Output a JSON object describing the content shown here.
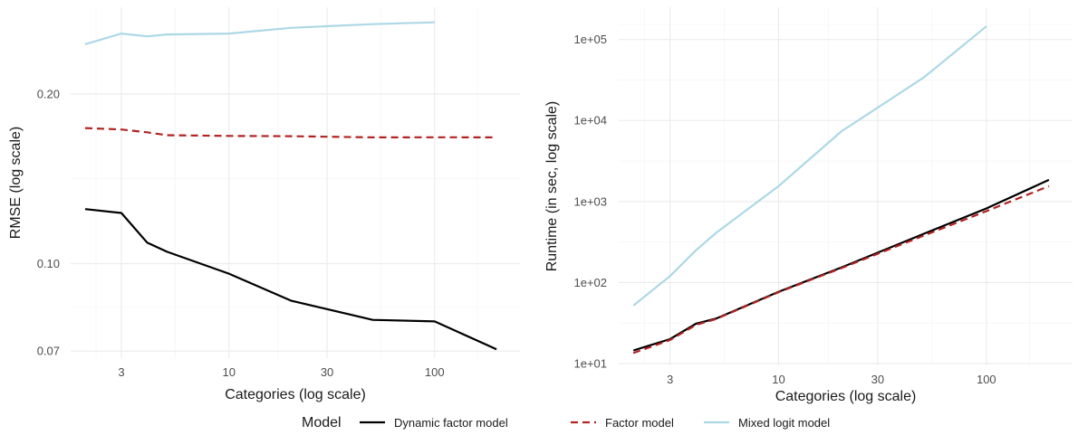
{
  "chart_data": [
    {
      "type": "line",
      "xlabel": "Categories (log scale)",
      "ylabel": "RMSE (log scale)",
      "x_scale": "log",
      "y_scale": "log",
      "xlim": [
        1.7,
        260
      ],
      "ylim": [
        0.068,
        0.285
      ],
      "x_ticks": [
        3,
        10,
        30,
        100
      ],
      "x_tick_labels": [
        "3",
        "10",
        "30",
        "100"
      ],
      "y_ticks": [
        0.07,
        0.1,
        0.2
      ],
      "y_tick_labels": [
        "0.07",
        "0.10",
        "0.20"
      ],
      "grid": true,
      "series": [
        {
          "name": "Dynamic factor model",
          "color": "#000000",
          "dash": "solid",
          "x": [
            2,
            3,
            4,
            5,
            10,
            20,
            50,
            100,
            200
          ],
          "values": [
            0.125,
            0.123,
            0.109,
            0.105,
            0.096,
            0.086,
            0.0795,
            0.079,
            0.0705
          ]
        },
        {
          "name": "Factor model",
          "color": "#b22222",
          "dash": "dashed",
          "x": [
            2,
            3,
            4,
            5,
            10,
            20,
            50,
            100,
            200
          ],
          "values": [
            0.174,
            0.173,
            0.171,
            0.169,
            0.1685,
            0.1683,
            0.1675,
            0.1676,
            0.1675
          ]
        },
        {
          "name": "Mixed logit model",
          "color": "#add8e6",
          "dash": "solid",
          "x": [
            2,
            3,
            4,
            5,
            10,
            20,
            50,
            100
          ],
          "values": [
            0.245,
            0.256,
            0.253,
            0.255,
            0.256,
            0.262,
            0.266,
            0.268
          ]
        }
      ]
    },
    {
      "type": "line",
      "xlabel": "Categories (log scale)",
      "ylabel": "Runtime (in sec, log scale)",
      "x_scale": "log",
      "y_scale": "log",
      "xlim": [
        1.7,
        260
      ],
      "ylim": [
        9.5,
        250000
      ],
      "x_ticks": [
        3,
        10,
        30,
        100
      ],
      "x_tick_labels": [
        "3",
        "10",
        "30",
        "100"
      ],
      "y_ticks": [
        10,
        100,
        1000,
        10000,
        100000
      ],
      "y_tick_labels": [
        "1e+01",
        "1e+02",
        "1e+03",
        "1e+04",
        "1e+05"
      ],
      "grid": true,
      "series": [
        {
          "name": "Dynamic factor model",
          "color": "#000000",
          "dash": "solid",
          "x": [
            2,
            3,
            4,
            5,
            10,
            20,
            50,
            100,
            200
          ],
          "values": [
            14.5,
            20,
            31,
            36,
            77,
            153,
            400,
            820,
            1850
          ]
        },
        {
          "name": "Factor model",
          "color": "#b22222",
          "dash": "dashed",
          "x": [
            2,
            3,
            4,
            5,
            10,
            20,
            50,
            100,
            200
          ],
          "values": [
            13.5,
            19.5,
            30,
            35.5,
            76,
            150,
            380,
            760,
            1550
          ]
        },
        {
          "name": "Mixed logit model",
          "color": "#add8e6",
          "dash": "solid",
          "x": [
            2,
            3,
            4,
            5,
            10,
            20,
            50,
            100
          ],
          "values": [
            52,
            120,
            250,
            410,
            1550,
            7300,
            34000,
            145000
          ]
        }
      ]
    }
  ],
  "legend": {
    "title": "Model",
    "position": "bottom",
    "items": [
      {
        "label": "Dynamic factor model",
        "color": "#000000",
        "dash": "solid"
      },
      {
        "label": "Factor model",
        "color": "#b22222",
        "dash": "dashed"
      },
      {
        "label": "Mixed logit model",
        "color": "#add8e6",
        "dash": "solid"
      }
    ]
  }
}
